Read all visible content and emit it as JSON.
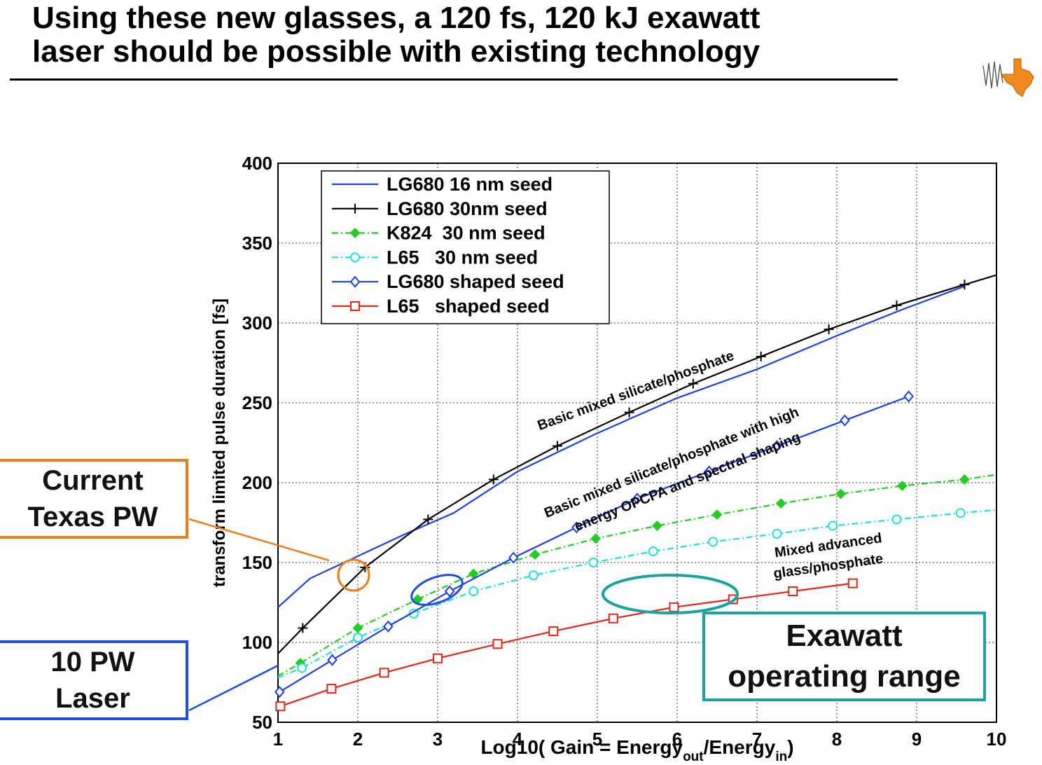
{
  "slide": {
    "title_line1": "Using these new glasses, a 120 fs, 120 kJ exawatt",
    "title_line2": "laser should be possible with existing technology",
    "logo": "texas-logo-icon"
  },
  "callouts": {
    "current_texas_pw_line1": "Current",
    "current_texas_pw_line2": "Texas PW",
    "ten_pw_line1": "10 PW",
    "ten_pw_line2": "Laser",
    "exawatt_line1": "Exawatt",
    "exawatt_line2": "operating range"
  },
  "colors": {
    "orange": "#ee7d1a",
    "blue": "#1f4ee0",
    "teal": "#1aa3a0",
    "red": "#e8231a",
    "green": "#22cc22",
    "cyan": "#22dddd"
  },
  "chart_data": {
    "type": "line",
    "xlabel": "Log10( Gain = Energy",
    "xlabel_sub1": "out",
    "xlabel_mid": "/Energy",
    "xlabel_sub2": "in",
    "xlabel_end": ")",
    "ylabel": "transform limited pulse duration [fs]",
    "xlim": [
      1,
      10
    ],
    "ylim": [
      50,
      400
    ],
    "xticks": [
      "1",
      "2",
      "3",
      "4",
      "5",
      "6",
      "7",
      "8",
      "9",
      "10"
    ],
    "yticks": [
      "50",
      "100",
      "150",
      "200",
      "250",
      "300",
      "350",
      "400"
    ],
    "grid": true,
    "legend_position": "top-left",
    "series": [
      {
        "name": "LG680 16 nm seed",
        "color": "#1f3fe6",
        "dash": "solid",
        "marker": "none",
        "x": [
          1,
          1.4,
          2,
          2.6,
          3.2,
          4,
          5,
          6,
          7,
          8,
          8.8,
          9.6
        ],
        "y": [
          122,
          140,
          154,
          168,
          181,
          207,
          231,
          253,
          271,
          292,
          308,
          323
        ]
      },
      {
        "name": "LG680 30nm seed",
        "color": "#000000",
        "dash": "solid",
        "marker": "plus",
        "x": [
          1,
          1.31,
          2.09,
          2.88,
          3.7,
          4.5,
          5.4,
          6.2,
          7.05,
          7.9,
          8.75,
          9.6,
          10
        ],
        "y": [
          93,
          109,
          147,
          177,
          202,
          223,
          244,
          262,
          279,
          296,
          311,
          324,
          330
        ]
      },
      {
        "name": "K824  30 nm seed",
        "color": "#22cc22",
        "dash": "dashdot",
        "marker": "diamond-filled",
        "x": [
          1,
          1.28,
          2.0,
          2.75,
          3.45,
          4.22,
          4.98,
          5.75,
          6.5,
          7.3,
          8.05,
          8.82,
          9.6,
          10
        ],
        "y": [
          79,
          87,
          109,
          127,
          143,
          155,
          165,
          173,
          180,
          187,
          193,
          198,
          202,
          205
        ]
      },
      {
        "name": "L65   30 nm seed",
        "color": "#22dddd",
        "dash": "dashdot",
        "marker": "circle",
        "x": [
          1,
          1.3,
          2.0,
          2.7,
          3.45,
          4.2,
          4.95,
          5.7,
          6.45,
          7.25,
          7.95,
          8.75,
          9.55,
          10
        ],
        "y": [
          78,
          84,
          103,
          118,
          132,
          142,
          150,
          157,
          163,
          168,
          173,
          177,
          181,
          183
        ]
      },
      {
        "name": "LG680 shaped seed",
        "color": "#1f3fe6",
        "dash": "solid",
        "marker": "diamond",
        "x": [
          1.02,
          1.68,
          2.38,
          3.15,
          3.95,
          4.74,
          5.5,
          6.4,
          7.25,
          8.1,
          8.9
        ],
        "y": [
          69,
          89,
          110,
          132,
          153,
          172,
          190,
          207,
          223,
          239,
          254
        ]
      },
      {
        "name": "L65   shaped seed",
        "color": "#e8231a",
        "dash": "solid",
        "marker": "square",
        "x": [
          1.03,
          1.67,
          2.33,
          3.0,
          3.75,
          4.45,
          5.2,
          5.96,
          6.7,
          7.45,
          8.2
        ],
        "y": [
          60,
          71,
          81,
          90,
          99,
          107,
          115,
          122,
          127,
          132,
          137
        ]
      }
    ],
    "annotations": [
      {
        "text": "Basic mixed silicate/phosphate",
        "x": 5.5,
        "y": 255,
        "angle": -20
      },
      {
        "text": "Basic mixed silicate/phosphate with high",
        "x": 5.95,
        "y": 210,
        "angle": -22
      },
      {
        "text": "energy OPCPA and spectral shaping",
        "x": 6.15,
        "y": 198,
        "angle": -22
      },
      {
        "text": "Mixed advanced",
        "x": 7.9,
        "y": 158,
        "angle": -8
      },
      {
        "text": "glass/phosphate",
        "x": 7.9,
        "y": 145,
        "angle": -8
      }
    ]
  }
}
